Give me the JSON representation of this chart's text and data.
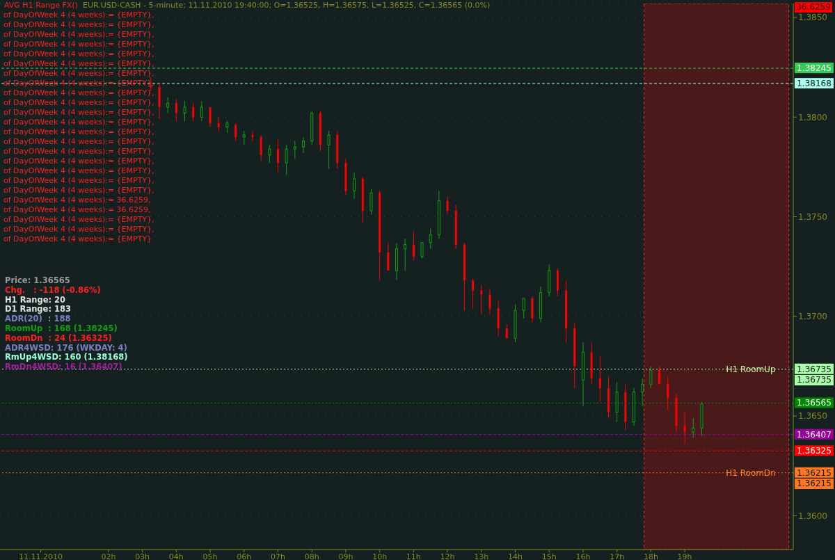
{
  "chart_data": {
    "type": "candlestick",
    "title": "AVG H1 Range FX()",
    "subtitle": "EUR.USD-CASH - 5-minute; 11.11.2010 19:40:00; O=1.36525, H=1.36575, L=1.36525, C=1.36565 (0.0%)",
    "x": [
      3.25,
      3.5,
      3.75,
      4,
      4.25,
      4.5,
      4.75,
      5,
      5.25,
      5.5,
      5.75,
      6,
      6.25,
      6.5,
      6.75,
      7,
      7.25,
      7.5,
      7.75,
      8,
      8.25,
      8.5,
      8.75,
      9,
      9.25,
      9.5,
      9.75,
      10,
      10.25,
      10.5,
      10.75,
      11,
      11.25,
      11.5,
      11.75,
      12,
      12.25,
      12.5,
      12.75,
      13,
      13.25,
      13.5,
      13.75,
      14,
      14.25,
      14.5,
      14.75,
      15,
      15.25,
      15.5,
      15.75,
      16,
      16.25,
      16.5,
      16.75,
      17,
      17.25,
      17.5,
      17.75,
      18,
      18.25,
      18.5,
      18.75,
      19,
      19.25,
      19.5
    ],
    "ohlc": [
      [
        1.3816,
        1.382,
        1.3813,
        1.3815
      ],
      [
        1.3815,
        1.3817,
        1.3799,
        1.3805
      ],
      [
        1.3805,
        1.381,
        1.3802,
        1.3807
      ],
      [
        1.3807,
        1.3809,
        1.3798,
        1.3802
      ],
      [
        1.3802,
        1.3808,
        1.3798,
        1.3805
      ],
      [
        1.3805,
        1.3807,
        1.3798,
        1.38
      ],
      [
        1.38,
        1.3808,
        1.3798,
        1.3805
      ],
      [
        1.3805,
        1.3805,
        1.3795,
        1.3797
      ],
      [
        1.3797,
        1.38,
        1.3793,
        1.3795
      ],
      [
        1.3795,
        1.3798,
        1.3792,
        1.3797
      ],
      [
        1.3796,
        1.3797,
        1.3788,
        1.379
      ],
      [
        1.379,
        1.3793,
        1.3786,
        1.3791
      ],
      [
        1.3791,
        1.3793,
        1.3788,
        1.379
      ],
      [
        1.379,
        1.3791,
        1.3778,
        1.3781
      ],
      [
        1.3781,
        1.3786,
        1.3777,
        1.3784
      ],
      [
        1.3784,
        1.3789,
        1.3772,
        1.3777
      ],
      [
        1.3777,
        1.3786,
        1.3771,
        1.3784
      ],
      [
        1.3784,
        1.3788,
        1.3779,
        1.3785
      ],
      [
        1.3785,
        1.379,
        1.3782,
        1.3788
      ],
      [
        1.3788,
        1.3803,
        1.3786,
        1.3802
      ],
      [
        1.3802,
        1.3803,
        1.3783,
        1.3786
      ],
      [
        1.3786,
        1.3793,
        1.3774,
        1.3791
      ],
      [
        1.3791,
        1.3793,
        1.3774,
        1.3777
      ],
      [
        1.3777,
        1.3779,
        1.3761,
        1.3763
      ],
      [
        1.3763,
        1.3772,
        1.3759,
        1.3769
      ],
      [
        1.3769,
        1.377,
        1.3747,
        1.3753
      ],
      [
        1.3753,
        1.3764,
        1.3751,
        1.3762
      ],
      [
        1.3762,
        1.3763,
        1.3718,
        1.3732
      ],
      [
        1.3732,
        1.3737,
        1.3723,
        1.3723
      ],
      [
        1.3723,
        1.3737,
        1.3718,
        1.3734
      ],
      [
        1.3734,
        1.3739,
        1.3723,
        1.3736
      ],
      [
        1.3736,
        1.3743,
        1.3728,
        1.373
      ],
      [
        1.373,
        1.3737,
        1.3729,
        1.3737
      ],
      [
        1.3737,
        1.3744,
        1.3734,
        1.3741
      ],
      [
        1.3741,
        1.3763,
        1.3739,
        1.3758
      ],
      [
        1.3758,
        1.376,
        1.3751,
        1.3753
      ],
      [
        1.3753,
        1.3756,
        1.3734,
        1.3736
      ],
      [
        1.3736,
        1.3737,
        1.3703,
        1.3718
      ],
      [
        1.3718,
        1.3719,
        1.3704,
        1.3713
      ],
      [
        1.3713,
        1.3716,
        1.3701,
        1.3711
      ],
      [
        1.3711,
        1.3714,
        1.3701,
        1.3704
      ],
      [
        1.3704,
        1.3708,
        1.369,
        1.3694
      ],
      [
        1.3694,
        1.3696,
        1.3689,
        1.3689
      ],
      [
        1.3689,
        1.3706,
        1.3687,
        1.3703
      ],
      [
        1.3703,
        1.3709,
        1.3699,
        1.3709
      ],
      [
        1.3709,
        1.371,
        1.3697,
        1.3699
      ],
      [
        1.3699,
        1.3715,
        1.3697,
        1.3712
      ],
      [
        1.3712,
        1.3726,
        1.371,
        1.3723
      ],
      [
        1.3723,
        1.3724,
        1.371,
        1.3713
      ],
      [
        1.3713,
        1.3718,
        1.3687,
        1.3694
      ],
      [
        1.3694,
        1.3697,
        1.3664,
        1.3675
      ],
      [
        1.3668,
        1.3687,
        1.3655,
        1.3682
      ],
      [
        1.3682,
        1.3687,
        1.3666,
        1.3669
      ],
      [
        1.3669,
        1.368,
        1.3657,
        1.3664
      ],
      [
        1.3664,
        1.367,
        1.3649,
        1.3652
      ],
      [
        1.3652,
        1.3667,
        1.3647,
        1.3662
      ],
      [
        1.3662,
        1.3666,
        1.3643,
        1.3647
      ],
      [
        1.3647,
        1.3664,
        1.3645,
        1.3662
      ],
      [
        1.3662,
        1.3669,
        1.3655,
        1.3666
      ],
      [
        1.3666,
        1.3675,
        1.3664,
        1.3673
      ],
      [
        1.3673,
        1.3675,
        1.3666,
        1.3666
      ],
      [
        1.3666,
        1.367,
        1.3653,
        1.3659
      ],
      [
        1.3659,
        1.3661,
        1.3642,
        1.3645
      ],
      [
        1.3645,
        1.3652,
        1.3636,
        1.3642
      ],
      [
        1.3642,
        1.3649,
        1.3639,
        1.3644
      ],
      [
        1.3644,
        1.3657,
        1.364,
        1.3656
      ]
    ],
    "xlim": [
      -1.2,
      22.2
    ],
    "xticks": [
      {
        "value": 0,
        "label": "11.11.2010"
      },
      {
        "value": 2,
        "label": "02h"
      },
      {
        "value": 3,
        "label": "03h"
      },
      {
        "value": 4,
        "label": "04h"
      },
      {
        "value": 5,
        "label": "05h"
      },
      {
        "value": 6,
        "label": "06h"
      },
      {
        "value": 7,
        "label": "07h"
      },
      {
        "value": 8,
        "label": "08h"
      },
      {
        "value": 9,
        "label": "09h"
      },
      {
        "value": 10,
        "label": "10h"
      },
      {
        "value": 11,
        "label": "11h"
      },
      {
        "value": 12,
        "label": "12h"
      },
      {
        "value": 13,
        "label": "13h"
      },
      {
        "value": 14,
        "label": "14h"
      },
      {
        "value": 15,
        "label": "15h"
      },
      {
        "value": 16,
        "label": "16h"
      },
      {
        "value": 17,
        "label": "17h"
      },
      {
        "value": 18,
        "label": "18h"
      },
      {
        "value": 19,
        "label": "19h"
      }
    ],
    "ylim": [
      1.3583,
      1.3857
    ],
    "yticks": [
      {
        "value": 1.36,
        "label": "1.3600"
      },
      {
        "value": 1.365,
        "label": "1.3650"
      },
      {
        "value": 1.37,
        "label": "1.3700"
      },
      {
        "value": 1.375,
        "label": "1.3750"
      },
      {
        "value": 1.38,
        "label": "1.3800"
      },
      {
        "value": 1.385,
        "label": "1.3850"
      }
    ],
    "grid": "y",
    "ref_lines": [
      {
        "axis": "y",
        "value": 1.38245,
        "label": "1.38245",
        "color": "#33cc55",
        "line_style": "dashed"
      },
      {
        "axis": "y",
        "value": 1.38168,
        "label": "1.38168",
        "color": "#aaffee",
        "line_style": "dashed"
      },
      {
        "axis": "y",
        "value": 1.36735,
        "label": "1.36735",
        "color": "#aaffaa",
        "line_style": "dotted"
      },
      {
        "axis": "y",
        "value": 1.36565,
        "label": "1.36565",
        "color": "#008800",
        "line_style": "dotted"
      },
      {
        "axis": "y",
        "value": 1.36407,
        "label": "1.36407",
        "color": "#990099",
        "line_style": "dashed"
      },
      {
        "axis": "y",
        "value": 1.36325,
        "label": "1.36325",
        "color": "#ff0000",
        "line_style": "dashed"
      },
      {
        "axis": "y",
        "value": 1.36215,
        "label": "1.36215",
        "color": "#ff7722",
        "line_style": "dotted"
      }
    ],
    "bands": [
      {
        "axis": "x",
        "from": 17.8,
        "to": 22.07,
        "color": "#4a1a1a"
      }
    ],
    "annotations": [
      "of DayOfWeek 4 (4 weeks):= {EMPTY},",
      "of DayOfWeek 4 (4 weeks):= {EMPTY},",
      "of DayOfWeek 4 (4 weeks):= {EMPTY},",
      "of DayOfWeek 4 (4 weeks):= {EMPTY},",
      "of DayOfWeek 4 (4 weeks):= {EMPTY},",
      "of DayOfWeek 4 (4 weeks):= {EMPTY},",
      "of DayOfWeek 4 (4 weeks):= {EMPTY},",
      "of DayOfWeek 4 (4 weeks):= {EMPTY},",
      "of DayOfWeek 4 (4 weeks):= {EMPTY},",
      "of DayOfWeek 4 (4 weeks):= {EMPTY},",
      "of DayOfWeek 4 (4 weeks):= {EMPTY},",
      "of DayOfWeek 4 (4 weeks):= {EMPTY},",
      "of DayOfWeek 4 (4 weeks):= {EMPTY},",
      "of DayOfWeek 4 (4 weeks):= {EMPTY},",
      "of DayOfWeek 4 (4 weeks):= {EMPTY},",
      "of DayOfWeek 4 (4 weeks):= {EMPTY},",
      "of DayOfWeek 4 (4 weeks):= {EMPTY},",
      "of DayOfWeek 4 (4 weeks):= {EMPTY},",
      "of DayOfWeek 4 (4 weeks):= {EMPTY},",
      "of DayOfWeek 4 (4 weeks):= 36.6259,",
      "of DayOfWeek 4 (4 weeks):= 36.6259,",
      "of DayOfWeek 4 (4 weeks):= {EMPTY},",
      "of DayOfWeek 4 (4 weeks):= {EMPTY},",
      "of DayOfWeek 4 (4 weeks):= {EMPTY}",
      "Price: 1.36565",
      "Chg.   : -118 (-0.86%)",
      "H1 Range: 20",
      "D1 Range: 183",
      "ADR(20)  : 188",
      "RoomUp  : 168 (1.38245)",
      "RoomDn  : 24 (1.36325)",
      "ADR4WSD: 176 (WKDAY: 4)",
      "RmUp4WSD: 160 (1.38168)",
      "RmDn4WSD: 16 (1.36407)",
      "36.6259",
      "1.36735",
      "1.36215",
      {
        "text": "H1 RoomUp",
        "x": 20.95,
        "y": 1.36735
      },
      {
        "text": "H1 RoomDn",
        "x": 20.95,
        "y": 1.36215
      }
    ]
  }
}
